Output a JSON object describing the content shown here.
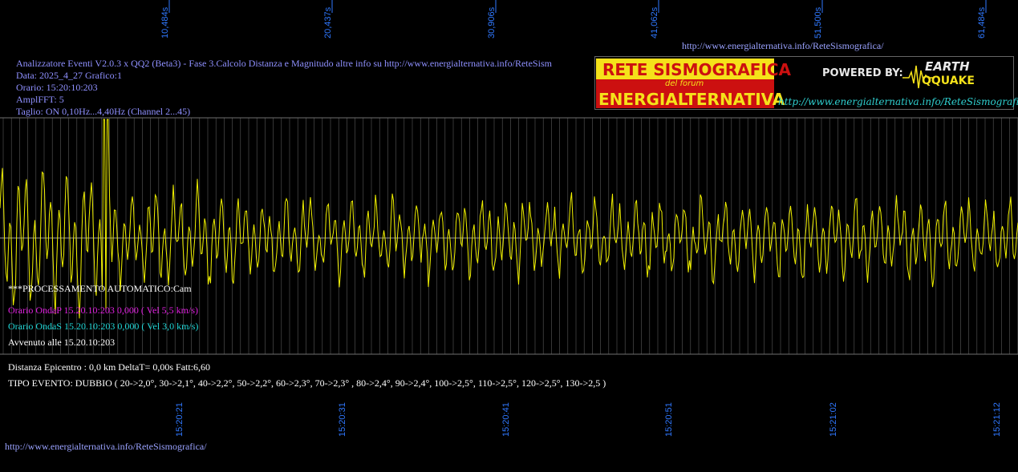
{
  "header": {
    "line1": "Analizzatore Eventi V2.0.3 x QQ2 (Beta3) - Fase 3.Calcolo Distanza e Magnitudo altre info su http://www.energialternativa.info/ReteSism",
    "line2": "Data: 2025_4_27 Grafico:1",
    "line3": "Orario: 15:20:10:203",
    "line4": "AmplFFT: 5",
    "line5": "Taglio: ON 0,10Hz...4,40Hz      (Channel 2...45)"
  },
  "top_url": "http://www.energialternativa.info/ReteSismografica/",
  "bottom_url": "http://www.energialternativa.info/ReteSismografica/",
  "top_time_labels": [
    "10,484s",
    "20,437s",
    "30,906s",
    "41,062s",
    "51,500s",
    "61,484s"
  ],
  "bottom_time_labels": [
    "15:20:21",
    "15:20:31",
    "15:20:41",
    "15:20:51",
    "15:21:02",
    "15:21:12"
  ],
  "processing": {
    "auto_label": "***PROCESSAMENTO AUTOMATICO:Cam",
    "onda_p": "Orario OndaP 15.20.10:203  0,000 ( Vel 5,5 km/s)",
    "onda_s": "Orario OndaS 15.20.10:203  0,000 ( Vel 3,0 km/s)",
    "avvenuto": "Avvenuto alle 15.20.10:203"
  },
  "result": {
    "distanza": "Distanza Epicentro : 0,0 km DeltaT= 0,00s  Fatt:6,60",
    "tipo_evento": "TIPO EVENTO: DUBBIO ( 20->2,0°, 30->2,1°, 40->2,2°, 50->2,2°, 60->2,3°, 70->2,3° , 80->2,4°, 90->2,4°, 100->2,5°, 110->2,5°, 120->2,5°, 130->2,5 )"
  },
  "logo": {
    "title_line1": "RETE SISMOGRAFICA",
    "subtitle": "del forum",
    "title_line2": "ENERGIALTERNATIVA",
    "powered_by": "POWERED BY:",
    "earth": "EARTH",
    "quake": "QQUAKE",
    "url": "http://www.energialternativa.info/ReteSismografica"
  },
  "colors": {
    "background": "#000000",
    "waveform": "#f2f200",
    "gridline": "#5a5a5a",
    "info_text": "#8f90ff",
    "onda_p": "#e020e0",
    "onda_s": "#20d8d8",
    "time_label": "#2f78ff",
    "logo_yellow": "#f5e21a",
    "logo_red": "#cc1010"
  }
}
